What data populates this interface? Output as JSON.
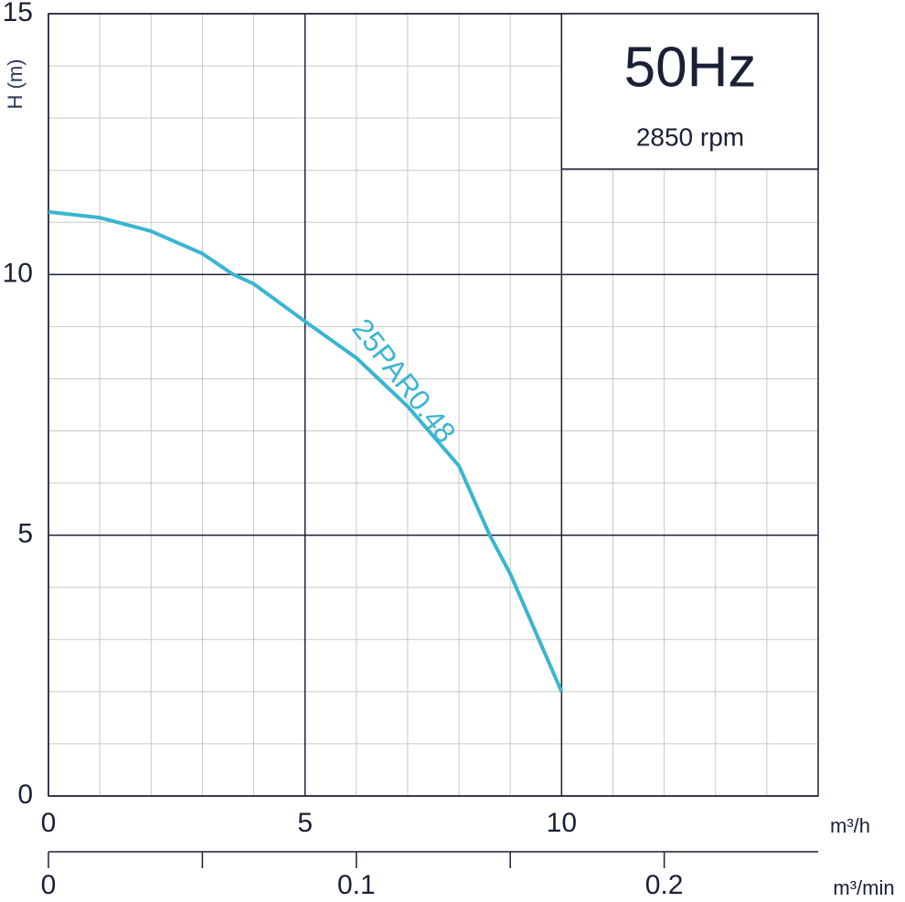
{
  "chart_data": {
    "type": "line",
    "frequency": "50Hz",
    "speed": "2850 rpm",
    "x_label": "m³/h",
    "y_label": "H (m)",
    "x2_label": "m³/min",
    "x": [
      0,
      1,
      2,
      3,
      3.6,
      4,
      5,
      6,
      7,
      8,
      8.6,
      9,
      10
    ],
    "series": [
      {
        "name": "25PAR0.48",
        "color": "#3ab5d0",
        "values": [
          11.2,
          11.09,
          10.83,
          10.4,
          10,
          9.82,
          9.1,
          8.4,
          7.47,
          6.33,
          5.0,
          4.26,
          2.0
        ]
      }
    ],
    "xlim": [
      0,
      15
    ],
    "ylim": [
      0,
      15
    ],
    "xticks": [
      0,
      5,
      10
    ],
    "yticks": [
      0,
      5,
      10,
      15
    ],
    "xminorticks": [
      1,
      2,
      3,
      4,
      6,
      7,
      8,
      9,
      11,
      12,
      13,
      14
    ],
    "yminorticks": [
      1,
      2,
      3,
      4,
      6,
      7,
      8,
      9,
      11,
      12,
      13,
      14
    ],
    "x2lim": [
      0,
      0.25
    ],
    "x2ticks": [
      0,
      0.1,
      0.2
    ],
    "x2minorticks": [
      0.05,
      0.15
    ],
    "grid": true
  }
}
